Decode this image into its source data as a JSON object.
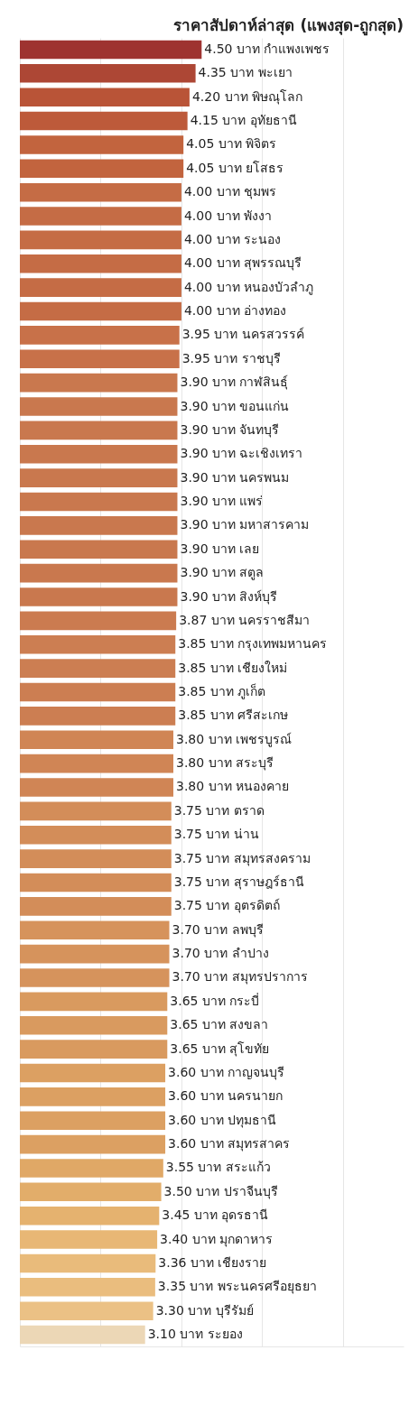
{
  "chart_data": {
    "type": "bar",
    "orientation": "horizontal",
    "title": "ราคาสัปดาห์ล่าสุด (แพงสุด-ถูกสุด)",
    "categories": [
      "กำแพงเพชร",
      "พะเยา",
      "พิษณุโลก",
      "อุทัยธานี",
      "พิจิตร",
      "ยโสธร",
      "ชุมพร",
      "พังงา",
      "ระนอง",
      "สุพรรณบุรี",
      "หนองบัวลำภู",
      "อ่างทอง",
      "นครสวรรค์",
      "ราชบุรี",
      "กาฬสินธุ์",
      "ขอนแก่น",
      "จันทบุรี",
      "ฉะเชิงเทรา",
      "นครพนม",
      "แพร่",
      "มหาสารคาม",
      "เลย",
      "สตูล",
      "สิงห์บุรี",
      "นครราชสีมา",
      "กรุงเทพมหานคร",
      "เชียงใหม่",
      "ภูเก็ต",
      "ศรีสะเกษ",
      "เพชรบูรณ์",
      "สระบุรี",
      "หนองคาย",
      "ตราด",
      "น่าน",
      "สมุทรสงคราม",
      "สุราษฎร์ธานี",
      "อุตรดิตถ์",
      "ลพบุรี",
      "ลำปาง",
      "สมุทรปราการ",
      "กระบี่",
      "สงขลา",
      "สุโขทัย",
      "กาญจนบุรี",
      "นครนายก",
      "ปทุมธานี",
      "สมุทรสาคร",
      "สระแก้ว",
      "ปราจีนบุรี",
      "อุดรธานี",
      "มุกดาหาร",
      "เชียงราย",
      "พระนครศรีอยุธยา",
      "บุรีรัมย์",
      "ระยอง"
    ],
    "values": [
      4.5,
      4.35,
      4.2,
      4.15,
      4.05,
      4.05,
      4.0,
      4.0,
      4.0,
      4.0,
      4.0,
      4.0,
      3.95,
      3.95,
      3.9,
      3.9,
      3.9,
      3.9,
      3.9,
      3.9,
      3.9,
      3.9,
      3.9,
      3.9,
      3.87,
      3.85,
      3.85,
      3.85,
      3.85,
      3.8,
      3.8,
      3.8,
      3.75,
      3.75,
      3.75,
      3.75,
      3.75,
      3.7,
      3.7,
      3.7,
      3.65,
      3.65,
      3.65,
      3.6,
      3.6,
      3.6,
      3.6,
      3.55,
      3.5,
      3.45,
      3.4,
      3.36,
      3.35,
      3.3,
      3.1
    ],
    "value_labels": [
      "4.50 บาท",
      "4.35 บาท",
      "4.20 บาท",
      "4.15 บาท",
      "4.05 บาท",
      "4.05 บาท",
      "4.00 บาท",
      "4.00 บาท",
      "4.00 บาท",
      "4.00 บาท",
      "4.00 บาท",
      "4.00 บาท",
      "3.95 บาท",
      "3.95 บาท",
      "3.90 บาท",
      "3.90 บาท",
      "3.90 บาท",
      "3.90 บาท",
      "3.90 บาท",
      "3.90 บาท",
      "3.90 บาท",
      "3.90 บาท",
      "3.90 บาท",
      "3.90 บาท",
      "3.87 บาท",
      "3.85 บาท",
      "3.85 บาท",
      "3.85 บาท",
      "3.85 บาท",
      "3.80 บาท",
      "3.80 บาท",
      "3.80 บาท",
      "3.75 บาท",
      "3.75 บาท",
      "3.75 บาท",
      "3.75 บาท",
      "3.75 บาท",
      "3.70 บาท",
      "3.70 บาท",
      "3.70 บาท",
      "3.65 บาท",
      "3.65 บาท",
      "3.65 บาท",
      "3.60 บาท",
      "3.60 บาท",
      "3.60 บาท",
      "3.60 บาท",
      "3.55 บาท",
      "3.50 บาท",
      "3.45 บาท",
      "3.40 บาท",
      "3.36 บาท",
      "3.35 บาท",
      "3.30 บาท",
      "3.10 บาท"
    ],
    "colors": [
      "#9e3330",
      "#ad4735",
      "#b95437",
      "#bd5a3a",
      "#c2643e",
      "#c2643e",
      "#c56c45",
      "#c56c45",
      "#c56c45",
      "#c56c45",
      "#c56c45",
      "#c56c45",
      "#c87149",
      "#c87149",
      "#c9784e",
      "#c9784e",
      "#c9784e",
      "#c9784e",
      "#c9784e",
      "#c9784e",
      "#c9784e",
      "#c9784e",
      "#c9784e",
      "#c9784e",
      "#cb7b50",
      "#cc7e52",
      "#cc7e52",
      "#cc7e52",
      "#cc7e52",
      "#d08555",
      "#d08555",
      "#d08555",
      "#d38d59",
      "#d38d59",
      "#d38d59",
      "#d38d59",
      "#d38d59",
      "#d6935c",
      "#d6935c",
      "#d6935c",
      "#d99a5f",
      "#d99a5f",
      "#d99a5f",
      "#dca062",
      "#dca062",
      "#dca062",
      "#dca062",
      "#e0a866",
      "#e2ad6a",
      "#e5b26f",
      "#e8b775",
      "#e9bb7b",
      "#eabd7e",
      "#ebc185",
      "#ecd7b6"
    ],
    "xlim": [
      0,
      9.5
    ],
    "grid": "x",
    "tick_labels": false
  }
}
